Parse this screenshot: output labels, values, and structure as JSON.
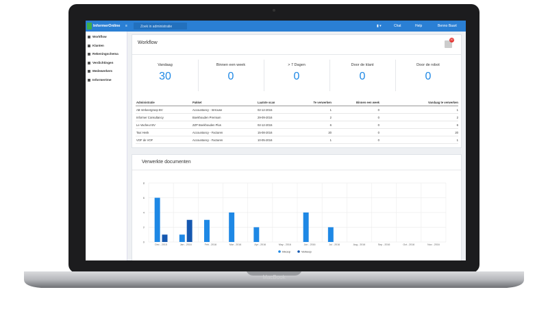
{
  "device_label": "MacBook",
  "navbar": {
    "logo": "InformerOnline",
    "search_placeholder": "Zoek in administratie",
    "links": [
      "Chat",
      "Help",
      "Benno Baart"
    ]
  },
  "sidebar": [
    "Workflow",
    "Klanten",
    "Rekeningschema",
    "Verdichtingen",
    "Medewerkers",
    "InformerOne"
  ],
  "workflow": {
    "title": "Workflow",
    "badge": "20",
    "stats": [
      {
        "label": "Vandaag",
        "value": 30
      },
      {
        "label": "Binnen een week",
        "value": 0
      },
      {
        "label": "> 7 Dagen",
        "value": 0
      },
      {
        "label": "Door de klant",
        "value": 0
      },
      {
        "label": "Door de robot",
        "value": 0
      }
    ],
    "table": {
      "columns": [
        "Administratie",
        "Pakket",
        "Laatste scan",
        "Te verwerken",
        "Binnen een week",
        "Vandaag te verwerken"
      ],
      "rows": [
        [
          "AB Verkeergroep BV",
          "Accountancy - InHouse",
          "02-12-2015",
          1,
          0,
          1
        ],
        [
          "Informer Consultancy",
          "Boekhouden Premium",
          "29-09-2016",
          2,
          0,
          2
        ],
        [
          "Le Vacheur BV",
          "ZZP Boekhouden Plus",
          "02-12-2015",
          6,
          0,
          6
        ],
        [
          "Taxi Henk",
          "Accountancy - Facturen",
          "15-08-2016",
          20,
          0,
          20
        ],
        [
          "VOF de VOF",
          "Accountancy - Facturen",
          "10-05-2016",
          1,
          0,
          1
        ]
      ]
    }
  },
  "chart_data": {
    "type": "bar",
    "title": "Verwerkte documenten",
    "categories": [
      "Dec - 2015",
      "Jan - 2016",
      "Feb - 2016",
      "Mar - 2016",
      "Apr - 2016",
      "May - 2016",
      "Jun - 2016",
      "Jul - 2016",
      "Aug - 2016",
      "Sep - 2016",
      "Oct - 2016",
      "Nov - 2016"
    ],
    "series": [
      {
        "name": "Inkoop",
        "color": "#1e88e5",
        "values": [
          6,
          1,
          3,
          4,
          2,
          0,
          4,
          2,
          0,
          0,
          0,
          0
        ]
      },
      {
        "name": "Verkoop",
        "color": "#1558b0",
        "values": [
          1,
          3,
          0,
          0,
          0,
          0,
          0,
          0,
          0,
          0,
          0,
          0
        ]
      }
    ],
    "ylim": [
      0,
      8
    ],
    "yticks": [
      0,
      2,
      4,
      6,
      8
    ],
    "grid": true,
    "legend": "bottom"
  }
}
